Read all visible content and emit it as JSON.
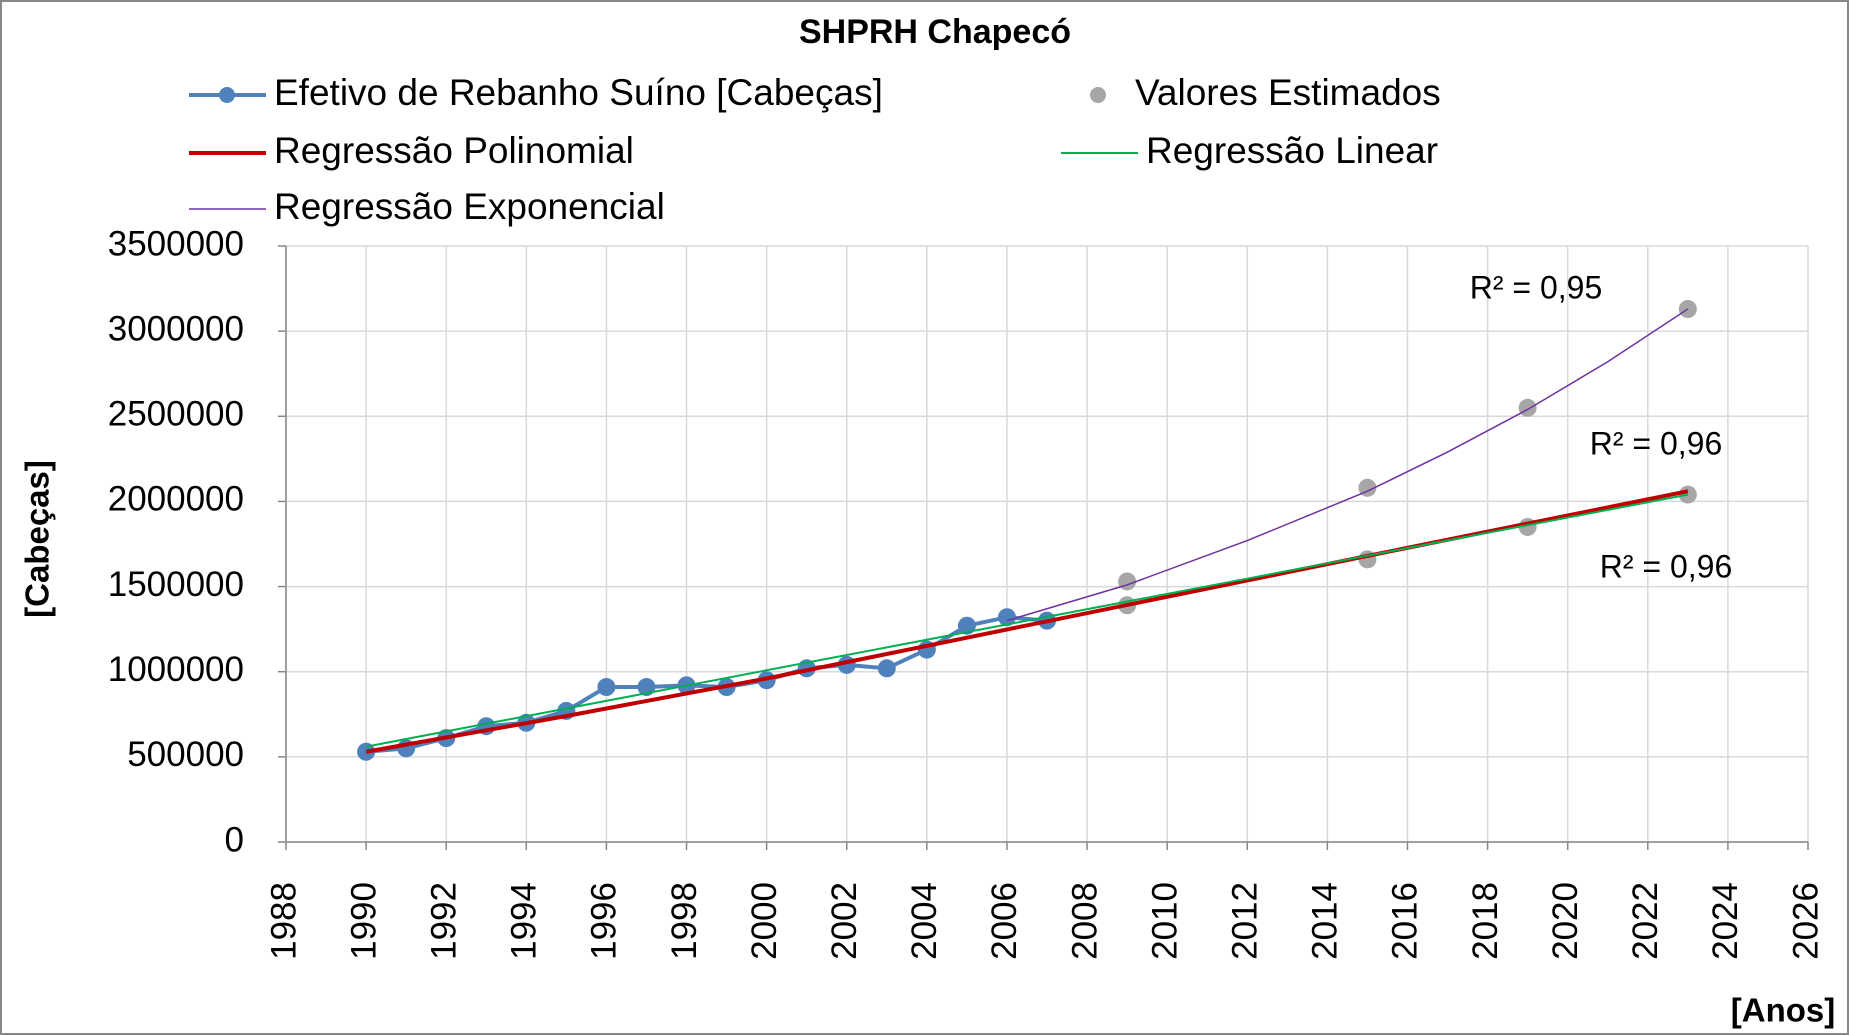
{
  "chart_data": {
    "type": "line",
    "title": "SHPRH Chapecó",
    "xlabel": "[Anos]",
    "ylabel": "[Cabeças]",
    "xlim": [
      1988,
      2026
    ],
    "xticks": [
      1988,
      1990,
      1992,
      1994,
      1996,
      1998,
      2000,
      2002,
      2004,
      2006,
      2008,
      2010,
      2012,
      2014,
      2016,
      2018,
      2020,
      2022,
      2024,
      2026
    ],
    "ylim": [
      0,
      3500000
    ],
    "yticks": [
      0,
      500000,
      1000000,
      1500000,
      2000000,
      2500000,
      3000000,
      3500000
    ],
    "grid": true,
    "series": [
      {
        "name": "Efetivo de Rebanho Suíno [Cabeças]",
        "color": "#4f81bd",
        "line": true,
        "marker": true,
        "x": [
          1990,
          1991,
          1992,
          1993,
          1994,
          1995,
          1996,
          1997,
          1998,
          1999,
          2000,
          2001,
          2002,
          2003,
          2004,
          2005,
          2006,
          2007
        ],
        "values": [
          530000,
          550000,
          610000,
          680000,
          700000,
          770000,
          910000,
          910000,
          920000,
          910000,
          950000,
          1020000,
          1040000,
          1020000,
          1130000,
          1270000,
          1320000,
          1300000
        ]
      },
      {
        "name": "Valores Estimados",
        "color": "#a6a6a6",
        "line": false,
        "marker": true,
        "x": [
          2009,
          2009,
          2015,
          2015,
          2019,
          2019,
          2023,
          2023
        ],
        "values": [
          1530000,
          1390000,
          2080000,
          1660000,
          2550000,
          1850000,
          3130000,
          2040000
        ]
      },
      {
        "name": "Regressão Polinomial",
        "color": "#c00000",
        "line": true,
        "marker": false,
        "width": 4,
        "x": [
          1990,
          1995,
          2000,
          2005,
          2010,
          2015,
          2019,
          2023
        ],
        "values": [
          530000,
          740000,
          960000,
          1200000,
          1440000,
          1680000,
          1870000,
          2060000
        ]
      },
      {
        "name": "Regressão Linear",
        "color": "#00b050",
        "line": true,
        "marker": false,
        "width": 2,
        "x": [
          1990,
          2023
        ],
        "values": [
          560000,
          2040000
        ]
      },
      {
        "name": "Regressão Exponencial",
        "color": "#7030a0",
        "line": true,
        "marker": false,
        "width": 1.5,
        "x": [
          2006,
          2009,
          2012,
          2015,
          2017,
          2019,
          2021,
          2023
        ],
        "values": [
          1300000,
          1510000,
          1770000,
          2060000,
          2290000,
          2540000,
          2820000,
          3130000
        ]
      }
    ],
    "annotations": [
      "R² = 0,95",
      "R² = 0,96",
      "R² = 0,96"
    ]
  }
}
